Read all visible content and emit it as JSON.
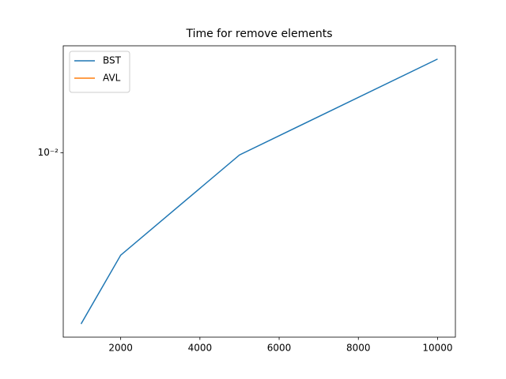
{
  "chart_data": {
    "type": "line",
    "title": "Time for remove elements",
    "x": [
      1000,
      2000,
      5000,
      10000
    ],
    "series": [
      {
        "name": "BST",
        "color": "#1f77b4",
        "values": [
          0.00195,
          0.00376,
          0.0098,
          0.0245
        ]
      },
      {
        "name": "AVL",
        "color": "#ff7f0e",
        "values": [
          null,
          null,
          null,
          null
        ]
      }
    ],
    "xlim": [
      550,
      10450
    ],
    "xticks": [
      2000,
      4000,
      6000,
      8000,
      10000
    ],
    "ylim": [
      0.001718,
      0.0278
    ],
    "yticks": [
      {
        "value": 0.01,
        "label": "10⁻²"
      }
    ],
    "yscale": "log",
    "legend": "upper left"
  }
}
